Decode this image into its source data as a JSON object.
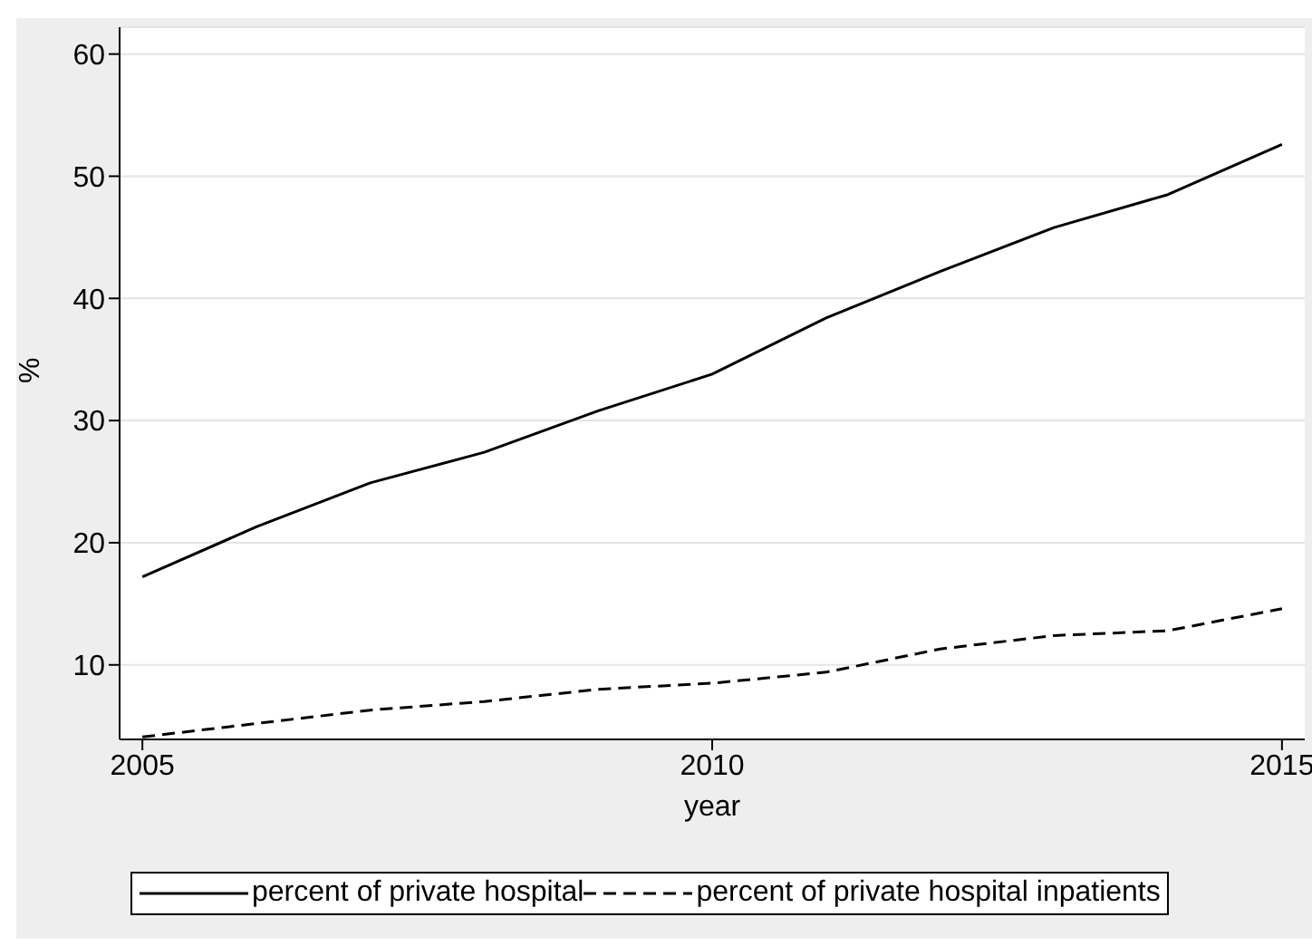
{
  "chart_data": {
    "type": "line",
    "xlabel": "year",
    "ylabel": "%",
    "x": [
      2005,
      2006,
      2007,
      2008,
      2009,
      2010,
      2011,
      2012,
      2013,
      2014,
      2015
    ],
    "series": [
      {
        "name": "percent of private hospital",
        "color": "#000000",
        "line_style": "solid",
        "values": [
          17.2,
          21.3,
          24.9,
          27.4,
          30.8,
          33.8,
          38.4,
          42.2,
          45.8,
          48.5,
          52.6
        ]
      },
      {
        "name": "percent of private hospital inpatients",
        "color": "#000000",
        "line_style": "dashed",
        "values": [
          4.1,
          5.2,
          6.3,
          7.0,
          8.0,
          8.5,
          9.4,
          11.3,
          12.4,
          12.8,
          14.6
        ]
      }
    ],
    "xlim": [
      2004.8,
      2015.2
    ],
    "xticks": [
      2005,
      2010,
      2015
    ],
    "ylim": [
      3.9,
      62.2
    ],
    "yticks": [
      10,
      20,
      30,
      40,
      50,
      60
    ],
    "grid": "y",
    "legend": "bottom",
    "marker": "none"
  }
}
